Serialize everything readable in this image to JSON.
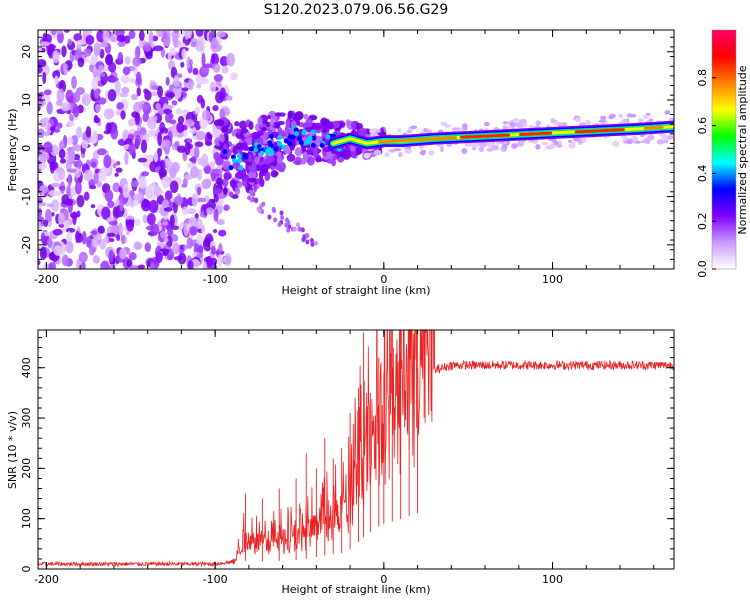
{
  "title": "S120.2023.079.06.56.G29",
  "chart_data": [
    {
      "type": "heatmap",
      "xlabel": "Height of straight line (km)",
      "ylabel": "Frequency (Hz)",
      "xlim": [
        -205,
        172
      ],
      "ylim": [
        -25,
        24.5
      ],
      "x_ticks": [
        -200,
        -100,
        0,
        100
      ],
      "y_ticks": [
        -20,
        -10,
        0,
        10,
        20
      ],
      "colorbar": {
        "label": "Normalized spectral amplitude",
        "range": [
          0.0,
          1.0
        ],
        "ticks": [
          0.0,
          0.2,
          0.4,
          0.6,
          0.8
        ],
        "colors": [
          "#ffffff",
          "#cc99ff",
          "#8000ff",
          "#0000ff",
          "#00ffff",
          "#00ff00",
          "#ffff00",
          "#ff8000",
          "#ff0000",
          "#ff0066"
        ]
      },
      "signal_track": [
        [
          -100,
          -2
        ],
        [
          -90,
          -2.5
        ],
        [
          -80,
          -2
        ],
        [
          -70,
          0
        ],
        [
          -60,
          1.5
        ],
        [
          -50,
          2.5
        ],
        [
          -40,
          2
        ],
        [
          -30,
          1
        ],
        [
          -20,
          2
        ],
        [
          -10,
          1
        ],
        [
          0,
          1.5
        ],
        [
          10,
          1.5
        ],
        [
          30,
          2
        ],
        [
          60,
          2.5
        ],
        [
          90,
          3
        ],
        [
          120,
          3.5
        ],
        [
          150,
          4
        ],
        [
          172,
          4.5
        ]
      ]
    },
    {
      "type": "line",
      "xlabel": "Height of straight line (km)",
      "ylabel": "SNR (10 * v/v)",
      "xlim": [
        -205,
        172
      ],
      "ylim": [
        0,
        475
      ],
      "x_ticks": [
        -200,
        -100,
        0,
        100
      ],
      "y_ticks": [
        0,
        100,
        200,
        300,
        400
      ],
      "color": "#ee2222",
      "envelope": [
        [
          -205,
          10
        ],
        [
          -100,
          10
        ],
        [
          -88,
          15
        ],
        [
          -84,
          55
        ],
        [
          -70,
          50
        ],
        [
          -50,
          60
        ],
        [
          -40,
          80
        ],
        [
          -30,
          100
        ],
        [
          -22,
          110
        ],
        [
          -15,
          180
        ],
        [
          -10,
          230
        ],
        [
          -5,
          270
        ],
        [
          0,
          300
        ],
        [
          10,
          330
        ],
        [
          20,
          370
        ],
        [
          30,
          395
        ],
        [
          40,
          405
        ],
        [
          172,
          405
        ]
      ],
      "spikes": [
        [
          -82,
          150
        ],
        [
          -72,
          140
        ],
        [
          -62,
          160
        ],
        [
          -52,
          180
        ],
        [
          -46,
          230
        ],
        [
          -40,
          200
        ],
        [
          -35,
          260
        ],
        [
          -30,
          220
        ],
        [
          -25,
          240
        ],
        [
          -20,
          310
        ],
        [
          -15,
          360
        ],
        [
          -12,
          470
        ],
        [
          -8,
          350
        ],
        [
          -3,
          420
        ],
        [
          0,
          390
        ],
        [
          5,
          400
        ],
        [
          10,
          430
        ],
        [
          15,
          380
        ],
        [
          20,
          400
        ]
      ]
    }
  ]
}
